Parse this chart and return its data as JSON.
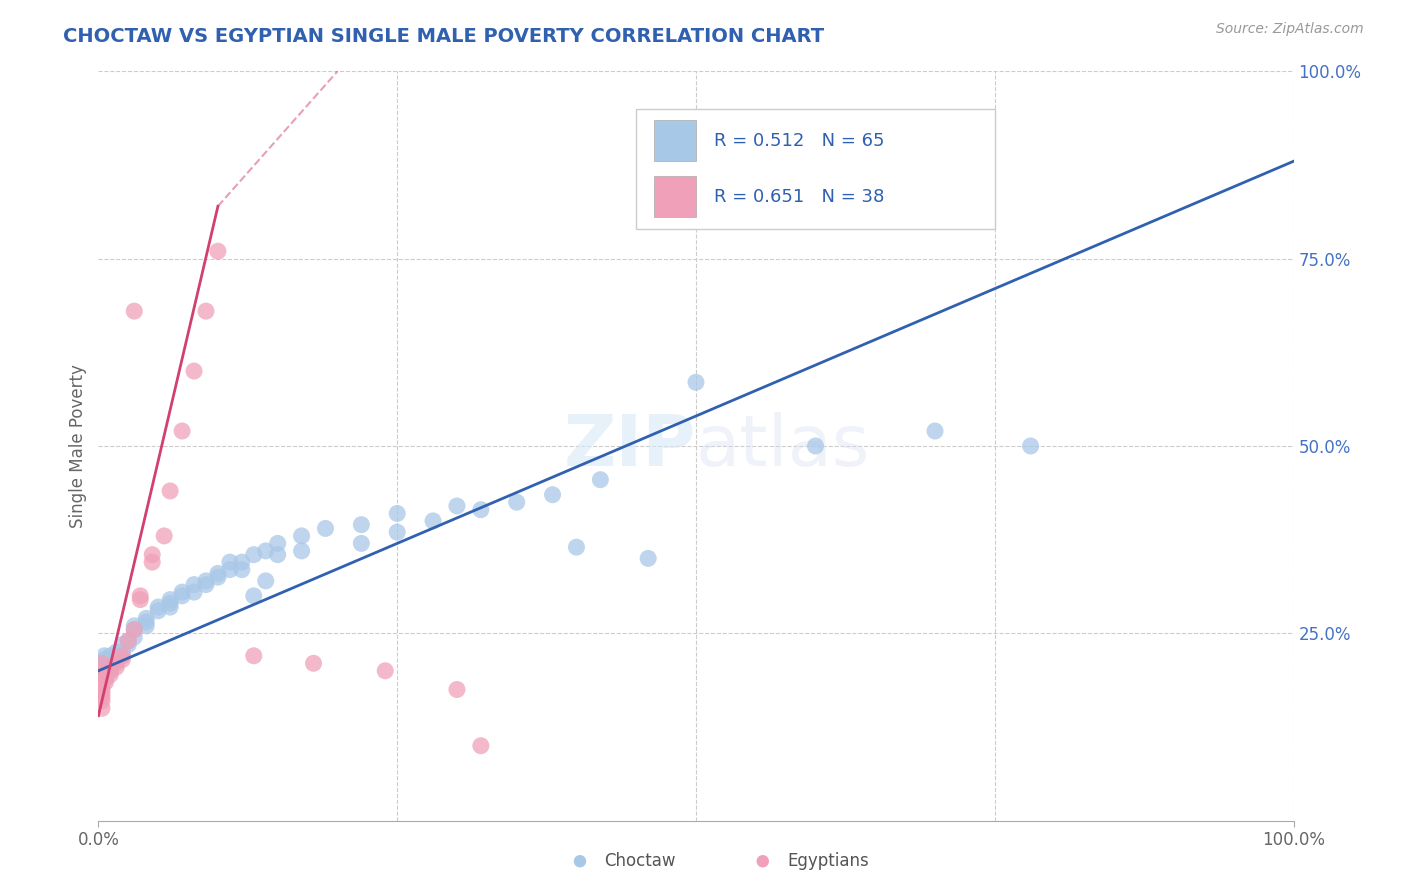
{
  "title": "CHOCTAW VS EGYPTIAN SINGLE MALE POVERTY CORRELATION CHART",
  "source": "Source: ZipAtlas.com",
  "ylabel": "Single Male Poverty",
  "xlim": [
    0,
    1
  ],
  "ylim": [
    0,
    1
  ],
  "choctaw_color": "#a8c8e8",
  "egyptian_color": "#f0a0b8",
  "choctaw_line_color": "#3060b0",
  "egyptian_line_color": "#d04070",
  "choctaw_R": 0.512,
  "choctaw_N": 65,
  "egyptian_R": 0.651,
  "egyptian_N": 38,
  "watermark": "ZIPatlas",
  "background_color": "#ffffff",
  "grid_color": "#cccccc",
  "title_color": "#3060b0",
  "ytick_color": "#4472c4",
  "legend_text_color": "#3060b0",
  "choctaw_points": [
    [
      0.005,
      0.22
    ],
    [
      0.005,
      0.21
    ],
    [
      0.005,
      0.2
    ],
    [
      0.005,
      0.215
    ],
    [
      0.005,
      0.205
    ],
    [
      0.01,
      0.21
    ],
    [
      0.01,
      0.22
    ],
    [
      0.01,
      0.2
    ],
    [
      0.01,
      0.215
    ],
    [
      0.015,
      0.22
    ],
    [
      0.015,
      0.215
    ],
    [
      0.015,
      0.225
    ],
    [
      0.02,
      0.235
    ],
    [
      0.02,
      0.225
    ],
    [
      0.02,
      0.22
    ],
    [
      0.025,
      0.235
    ],
    [
      0.025,
      0.24
    ],
    [
      0.03,
      0.255
    ],
    [
      0.03,
      0.26
    ],
    [
      0.03,
      0.245
    ],
    [
      0.04,
      0.265
    ],
    [
      0.04,
      0.27
    ],
    [
      0.04,
      0.26
    ],
    [
      0.05,
      0.285
    ],
    [
      0.05,
      0.28
    ],
    [
      0.06,
      0.29
    ],
    [
      0.06,
      0.295
    ],
    [
      0.06,
      0.285
    ],
    [
      0.07,
      0.305
    ],
    [
      0.07,
      0.3
    ],
    [
      0.08,
      0.315
    ],
    [
      0.08,
      0.305
    ],
    [
      0.09,
      0.315
    ],
    [
      0.09,
      0.32
    ],
    [
      0.1,
      0.325
    ],
    [
      0.1,
      0.33
    ],
    [
      0.11,
      0.335
    ],
    [
      0.11,
      0.345
    ],
    [
      0.12,
      0.345
    ],
    [
      0.12,
      0.335
    ],
    [
      0.13,
      0.355
    ],
    [
      0.13,
      0.3
    ],
    [
      0.14,
      0.36
    ],
    [
      0.14,
      0.32
    ],
    [
      0.15,
      0.37
    ],
    [
      0.15,
      0.355
    ],
    [
      0.17,
      0.38
    ],
    [
      0.17,
      0.36
    ],
    [
      0.19,
      0.39
    ],
    [
      0.22,
      0.395
    ],
    [
      0.22,
      0.37
    ],
    [
      0.25,
      0.41
    ],
    [
      0.25,
      0.385
    ],
    [
      0.28,
      0.4
    ],
    [
      0.3,
      0.42
    ],
    [
      0.32,
      0.415
    ],
    [
      0.35,
      0.425
    ],
    [
      0.38,
      0.435
    ],
    [
      0.4,
      0.365
    ],
    [
      0.42,
      0.455
    ],
    [
      0.46,
      0.35
    ],
    [
      0.5,
      0.585
    ],
    [
      0.6,
      0.5
    ],
    [
      0.7,
      0.52
    ],
    [
      0.78,
      0.5
    ]
  ],
  "egyptian_points": [
    [
      0.003,
      0.195
    ],
    [
      0.003,
      0.2
    ],
    [
      0.003,
      0.19
    ],
    [
      0.003,
      0.185
    ],
    [
      0.003,
      0.21
    ],
    [
      0.003,
      0.18
    ],
    [
      0.003,
      0.175
    ],
    [
      0.003,
      0.17
    ],
    [
      0.003,
      0.165
    ],
    [
      0.003,
      0.15
    ],
    [
      0.003,
      0.16
    ],
    [
      0.006,
      0.19
    ],
    [
      0.006,
      0.195
    ],
    [
      0.006,
      0.185
    ],
    [
      0.01,
      0.2
    ],
    [
      0.01,
      0.195
    ],
    [
      0.015,
      0.205
    ],
    [
      0.015,
      0.21
    ],
    [
      0.02,
      0.22
    ],
    [
      0.02,
      0.215
    ],
    [
      0.025,
      0.24
    ],
    [
      0.03,
      0.255
    ],
    [
      0.035,
      0.295
    ],
    [
      0.035,
      0.3
    ],
    [
      0.045,
      0.345
    ],
    [
      0.045,
      0.355
    ],
    [
      0.055,
      0.38
    ],
    [
      0.06,
      0.44
    ],
    [
      0.07,
      0.52
    ],
    [
      0.08,
      0.6
    ],
    [
      0.09,
      0.68
    ],
    [
      0.1,
      0.76
    ],
    [
      0.03,
      0.68
    ],
    [
      0.13,
      0.22
    ],
    [
      0.18,
      0.21
    ],
    [
      0.24,
      0.2
    ],
    [
      0.3,
      0.175
    ],
    [
      0.32,
      0.1
    ]
  ],
  "choctaw_line": [
    [
      0,
      0.2
    ],
    [
      1.0,
      0.88
    ]
  ],
  "egyptian_line_solid": [
    [
      0.0,
      0.14
    ],
    [
      0.1,
      0.82
    ]
  ],
  "egyptian_line_dashed": [
    [
      0.1,
      0.82
    ],
    [
      0.2,
      1.0
    ]
  ]
}
